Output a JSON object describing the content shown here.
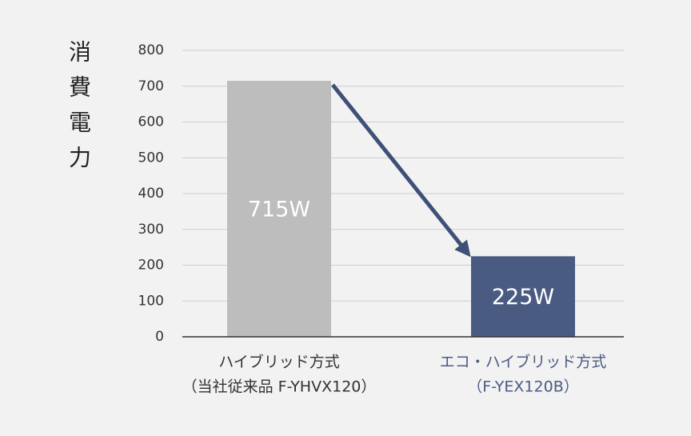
{
  "chart_data": {
    "type": "bar",
    "y_axis_label": "消費電力",
    "categories": [
      [
        "ハイブリッド方式",
        "（当社従来品 F-YHVX120）"
      ],
      [
        "エコ・ハイブリッド方式",
        "（F-YEX120B）"
      ]
    ],
    "values": [
      715,
      225
    ],
    "value_labels": [
      "715W",
      "225W"
    ],
    "colors": [
      "#bdbdbd",
      "#4a5b82"
    ],
    "category_label_colors": [
      "#333333",
      "#4a5b82"
    ],
    "ylim": [
      0,
      800
    ],
    "yticks": [
      0,
      100,
      200,
      300,
      400,
      500,
      600,
      700,
      800
    ],
    "grid": true
  }
}
